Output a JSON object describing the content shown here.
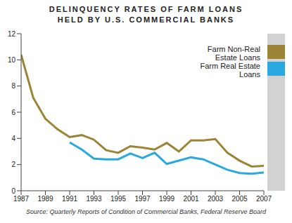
{
  "chart_data": {
    "type": "line",
    "title": "DELINQUENCY RATES OF FARM LOANS\nHELD BY U.S. COMMERCIAL BANKS",
    "source": "Source: Quarterly Reports of Condition of Commercial Banks, Federal Reserve Board",
    "x": [
      1987,
      1988,
      1989,
      1990,
      1991,
      1992,
      1993,
      1994,
      1995,
      1996,
      1997,
      1998,
      1999,
      2000,
      2001,
      2002,
      2003,
      2004,
      2005,
      2006,
      2007
    ],
    "series": [
      {
        "name": "Farm Non-Real Estate Loans",
        "color": "#9c8436",
        "values": [
          10.4,
          7.1,
          5.5,
          4.7,
          4.1,
          4.25,
          3.9,
          3.1,
          2.9,
          3.4,
          3.3,
          3.15,
          3.65,
          3.0,
          3.85,
          3.85,
          3.95,
          2.9,
          2.3,
          1.85,
          1.9
        ]
      },
      {
        "name": "Farm Real Estate Loans",
        "color": "#2aa9e0",
        "values": [
          null,
          null,
          null,
          null,
          3.7,
          3.15,
          2.45,
          2.4,
          2.4,
          2.85,
          2.5,
          2.9,
          2.05,
          2.3,
          2.55,
          2.4,
          2.0,
          1.6,
          1.35,
          1.3,
          1.4
        ]
      }
    ],
    "xlim": [
      1987,
      2007
    ],
    "xticks": [
      1987,
      1989,
      1991,
      1993,
      1995,
      1997,
      1999,
      2001,
      2003,
      2005,
      2007
    ],
    "ylim": [
      0,
      12
    ],
    "yticks": [
      0,
      2,
      4,
      6,
      8,
      10,
      12
    ],
    "grid": false,
    "legend": "upper right"
  }
}
